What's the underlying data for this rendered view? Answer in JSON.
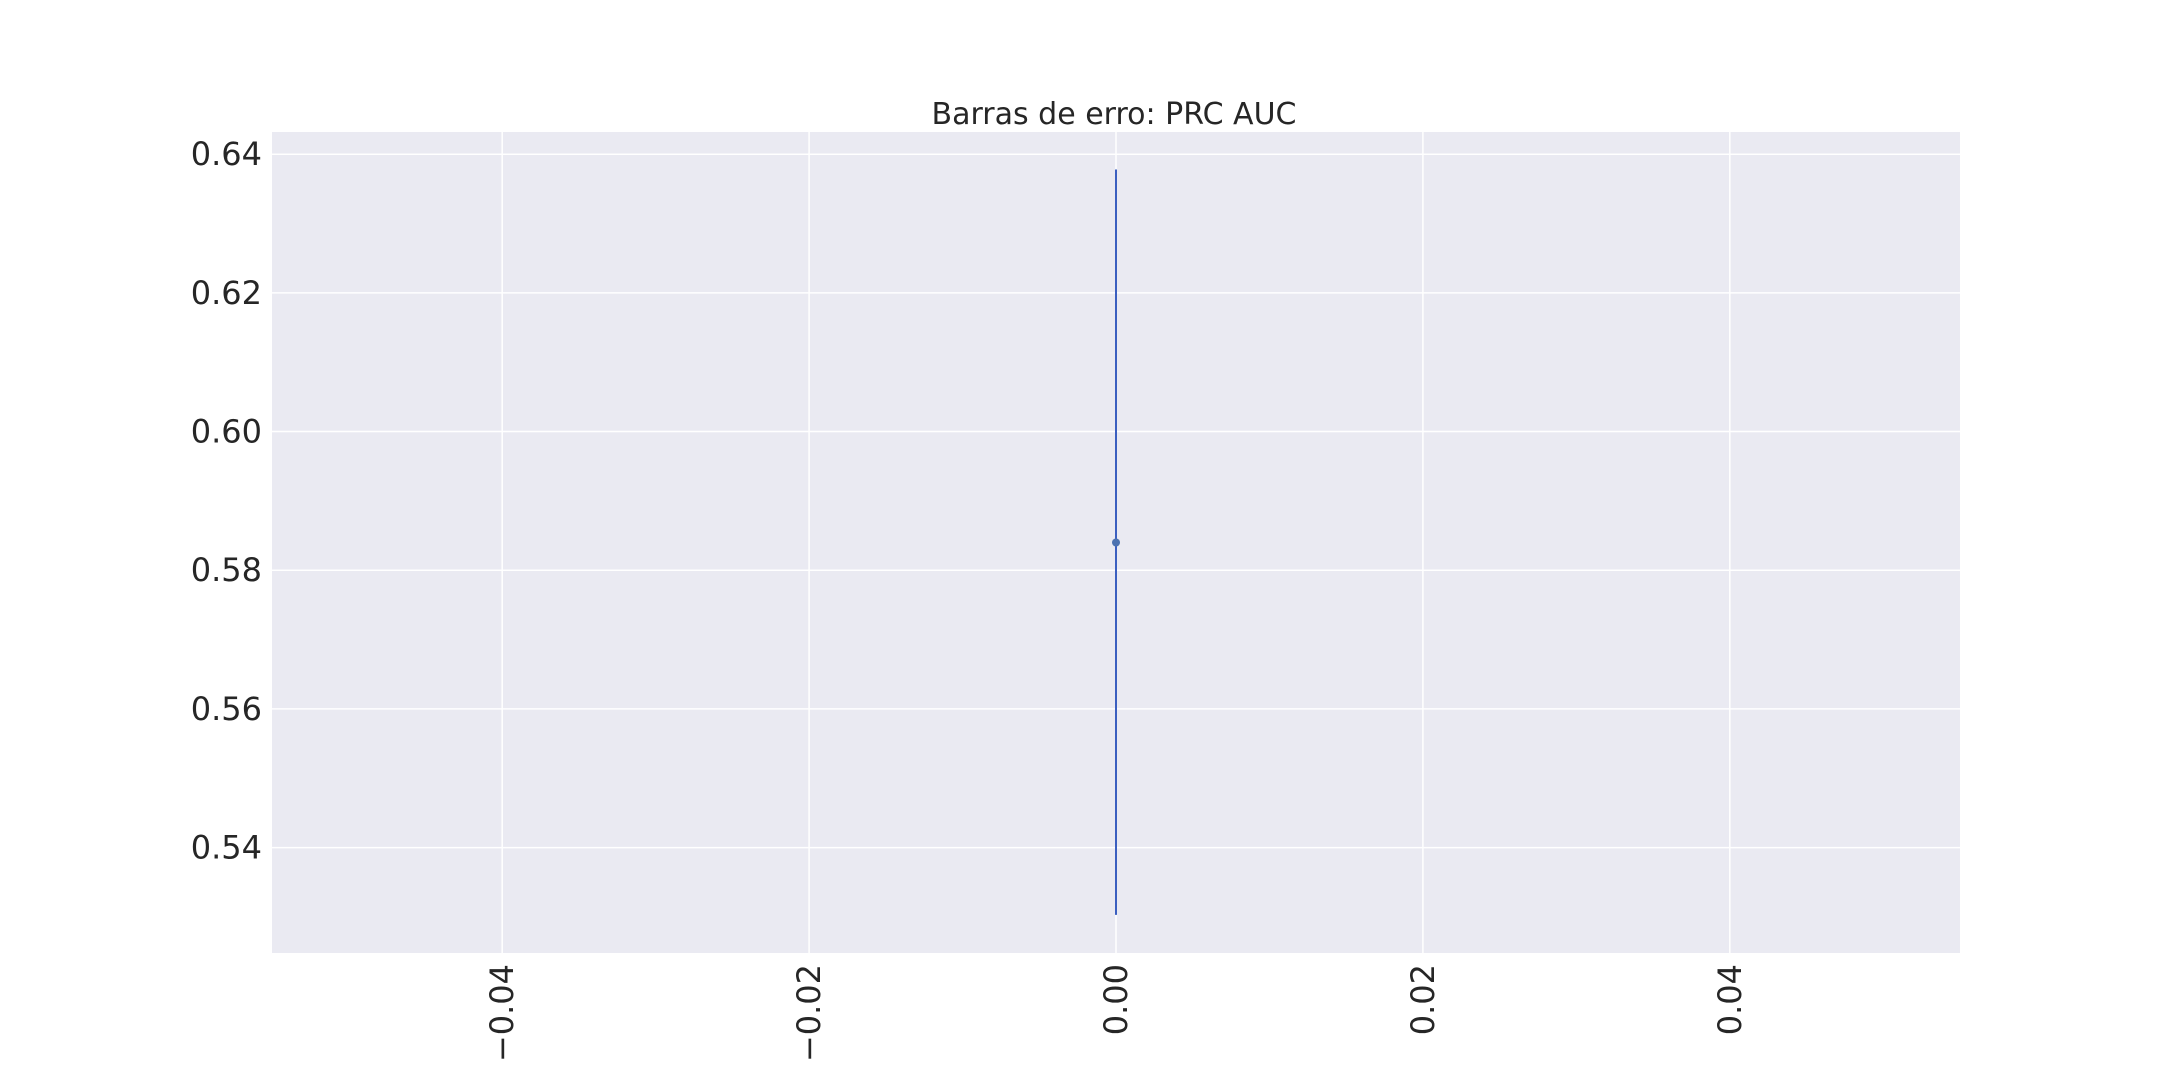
{
  "chart_data": {
    "type": "scatter",
    "title": "Barras de erro: PRC AUC",
    "xlabel": "",
    "ylabel": "",
    "xlim": [
      -0.055,
      0.055
    ],
    "ylim": [
      0.5248,
      0.6432
    ],
    "x_ticks": [
      -0.04,
      -0.02,
      0.0,
      0.02,
      0.04
    ],
    "x_tick_labels": [
      "−0.04",
      "−0.02",
      "0.00",
      "0.02",
      "0.04"
    ],
    "y_ticks": [
      0.54,
      0.56,
      0.58,
      0.6,
      0.62,
      0.64
    ],
    "y_tick_labels": [
      "0.54",
      "0.56",
      "0.58",
      "0.60",
      "0.62",
      "0.64"
    ],
    "grid": true,
    "points": [
      {
        "x": 0.0,
        "y": 0.584,
        "yerr_low": 0.5303,
        "yerr_high": 0.6378
      }
    ],
    "colors": {
      "plot_background": "#eaeaf2",
      "grid": "#ffffff",
      "series": "#4c72b0",
      "errorbar": "#3b5fc0",
      "text": "#262626"
    }
  }
}
